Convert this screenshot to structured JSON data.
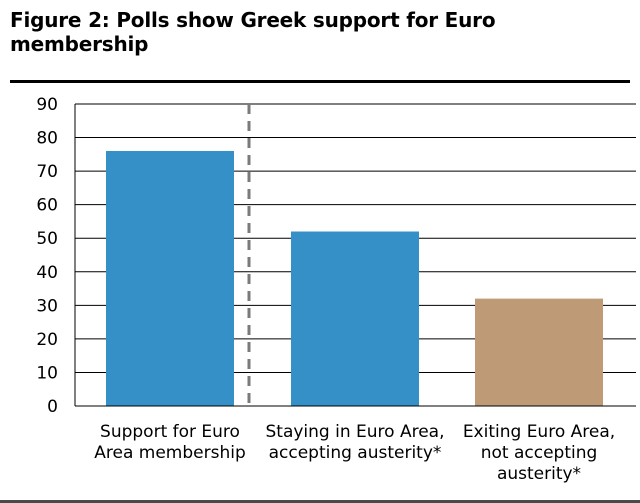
{
  "title": "Figure 2: Polls show Greek support for Euro membership",
  "chart_data": {
    "type": "bar",
    "categories": [
      [
        "Support for Euro",
        "Area membership"
      ],
      [
        "Staying in Euro Area,",
        "accepting austerity*"
      ],
      [
        "Exiting Euro Area,",
        "not accepting",
        "austerity*"
      ]
    ],
    "values": [
      76,
      52,
      32
    ],
    "colors": [
      "#3590c8",
      "#3590c8",
      "#bf9a76"
    ],
    "ylim": [
      0,
      90
    ],
    "yticks": [
      0,
      10,
      20,
      30,
      40,
      50,
      60,
      70,
      80,
      90
    ],
    "grid": true,
    "legend": "none",
    "separator": "dashed line between first and second bars"
  }
}
